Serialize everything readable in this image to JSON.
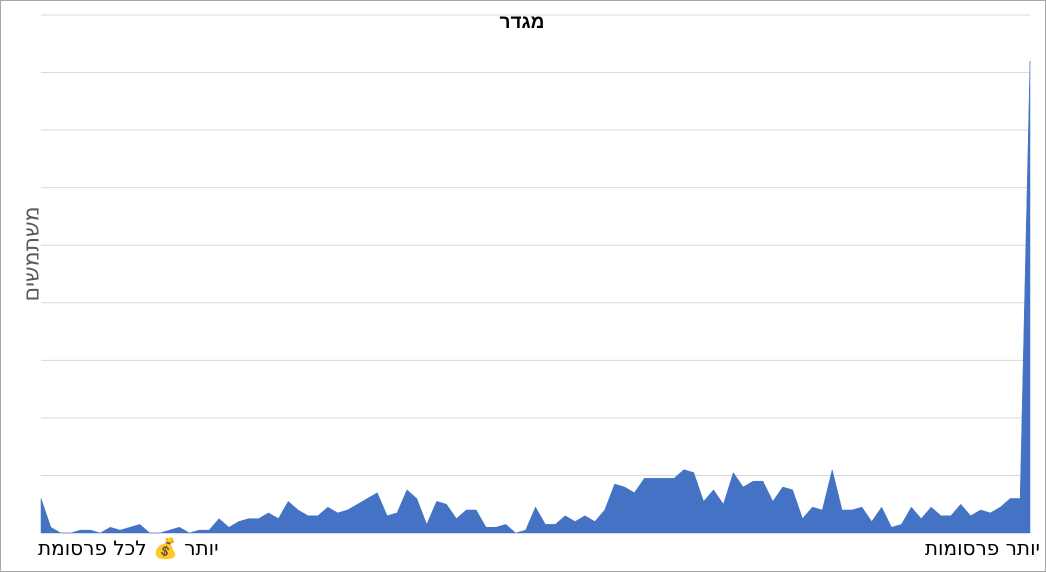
{
  "chart_data": {
    "type": "area",
    "title": "מגדר",
    "ylabel": "משתמשים",
    "xlabel": "",
    "x_edge_labels": {
      "left": "יותר 💰 לכל פרסומת",
      "right": "יותר פרסומות"
    },
    "ylim": [
      0,
      9
    ],
    "grid": true,
    "legend": "none",
    "color": "#4472c4",
    "series": [
      {
        "values": [
          0.6,
          0.1,
          0,
          0,
          0.05,
          0.05,
          0,
          0.1,
          0.05,
          0.1,
          0.15,
          0,
          0,
          0.05,
          0.1,
          0,
          0.05,
          0.05,
          0.25,
          0.1,
          0.2,
          0.25,
          0.25,
          0.35,
          0.25,
          0.55,
          0.4,
          0.3,
          0.3,
          0.45,
          0.35,
          0.4,
          0.5,
          0.6,
          0.7,
          0.3,
          0.35,
          0.75,
          0.6,
          0.15,
          0.55,
          0.5,
          0.25,
          0.4,
          0.4,
          0.1,
          0.1,
          0.15,
          0,
          0.05,
          0.45,
          0.15,
          0.15,
          0.3,
          0.2,
          0.3,
          0.2,
          0.4,
          0.85,
          0.8,
          0.7,
          0.95,
          0.95,
          0.95,
          0.95,
          1.1,
          1.05,
          0.55,
          0.75,
          0.5,
          1.05,
          0.8,
          0.9,
          0.9,
          0.55,
          0.8,
          0.75,
          0.25,
          0.45,
          0.4,
          1.1,
          0.4,
          0.4,
          0.45,
          0.2,
          0.45,
          0.1,
          0.15,
          0.45,
          0.25,
          0.45,
          0.3,
          0.3,
          0.5,
          0.3,
          0.4,
          0.35,
          0.45,
          0.6,
          0.6,
          8.2
        ]
      }
    ]
  }
}
